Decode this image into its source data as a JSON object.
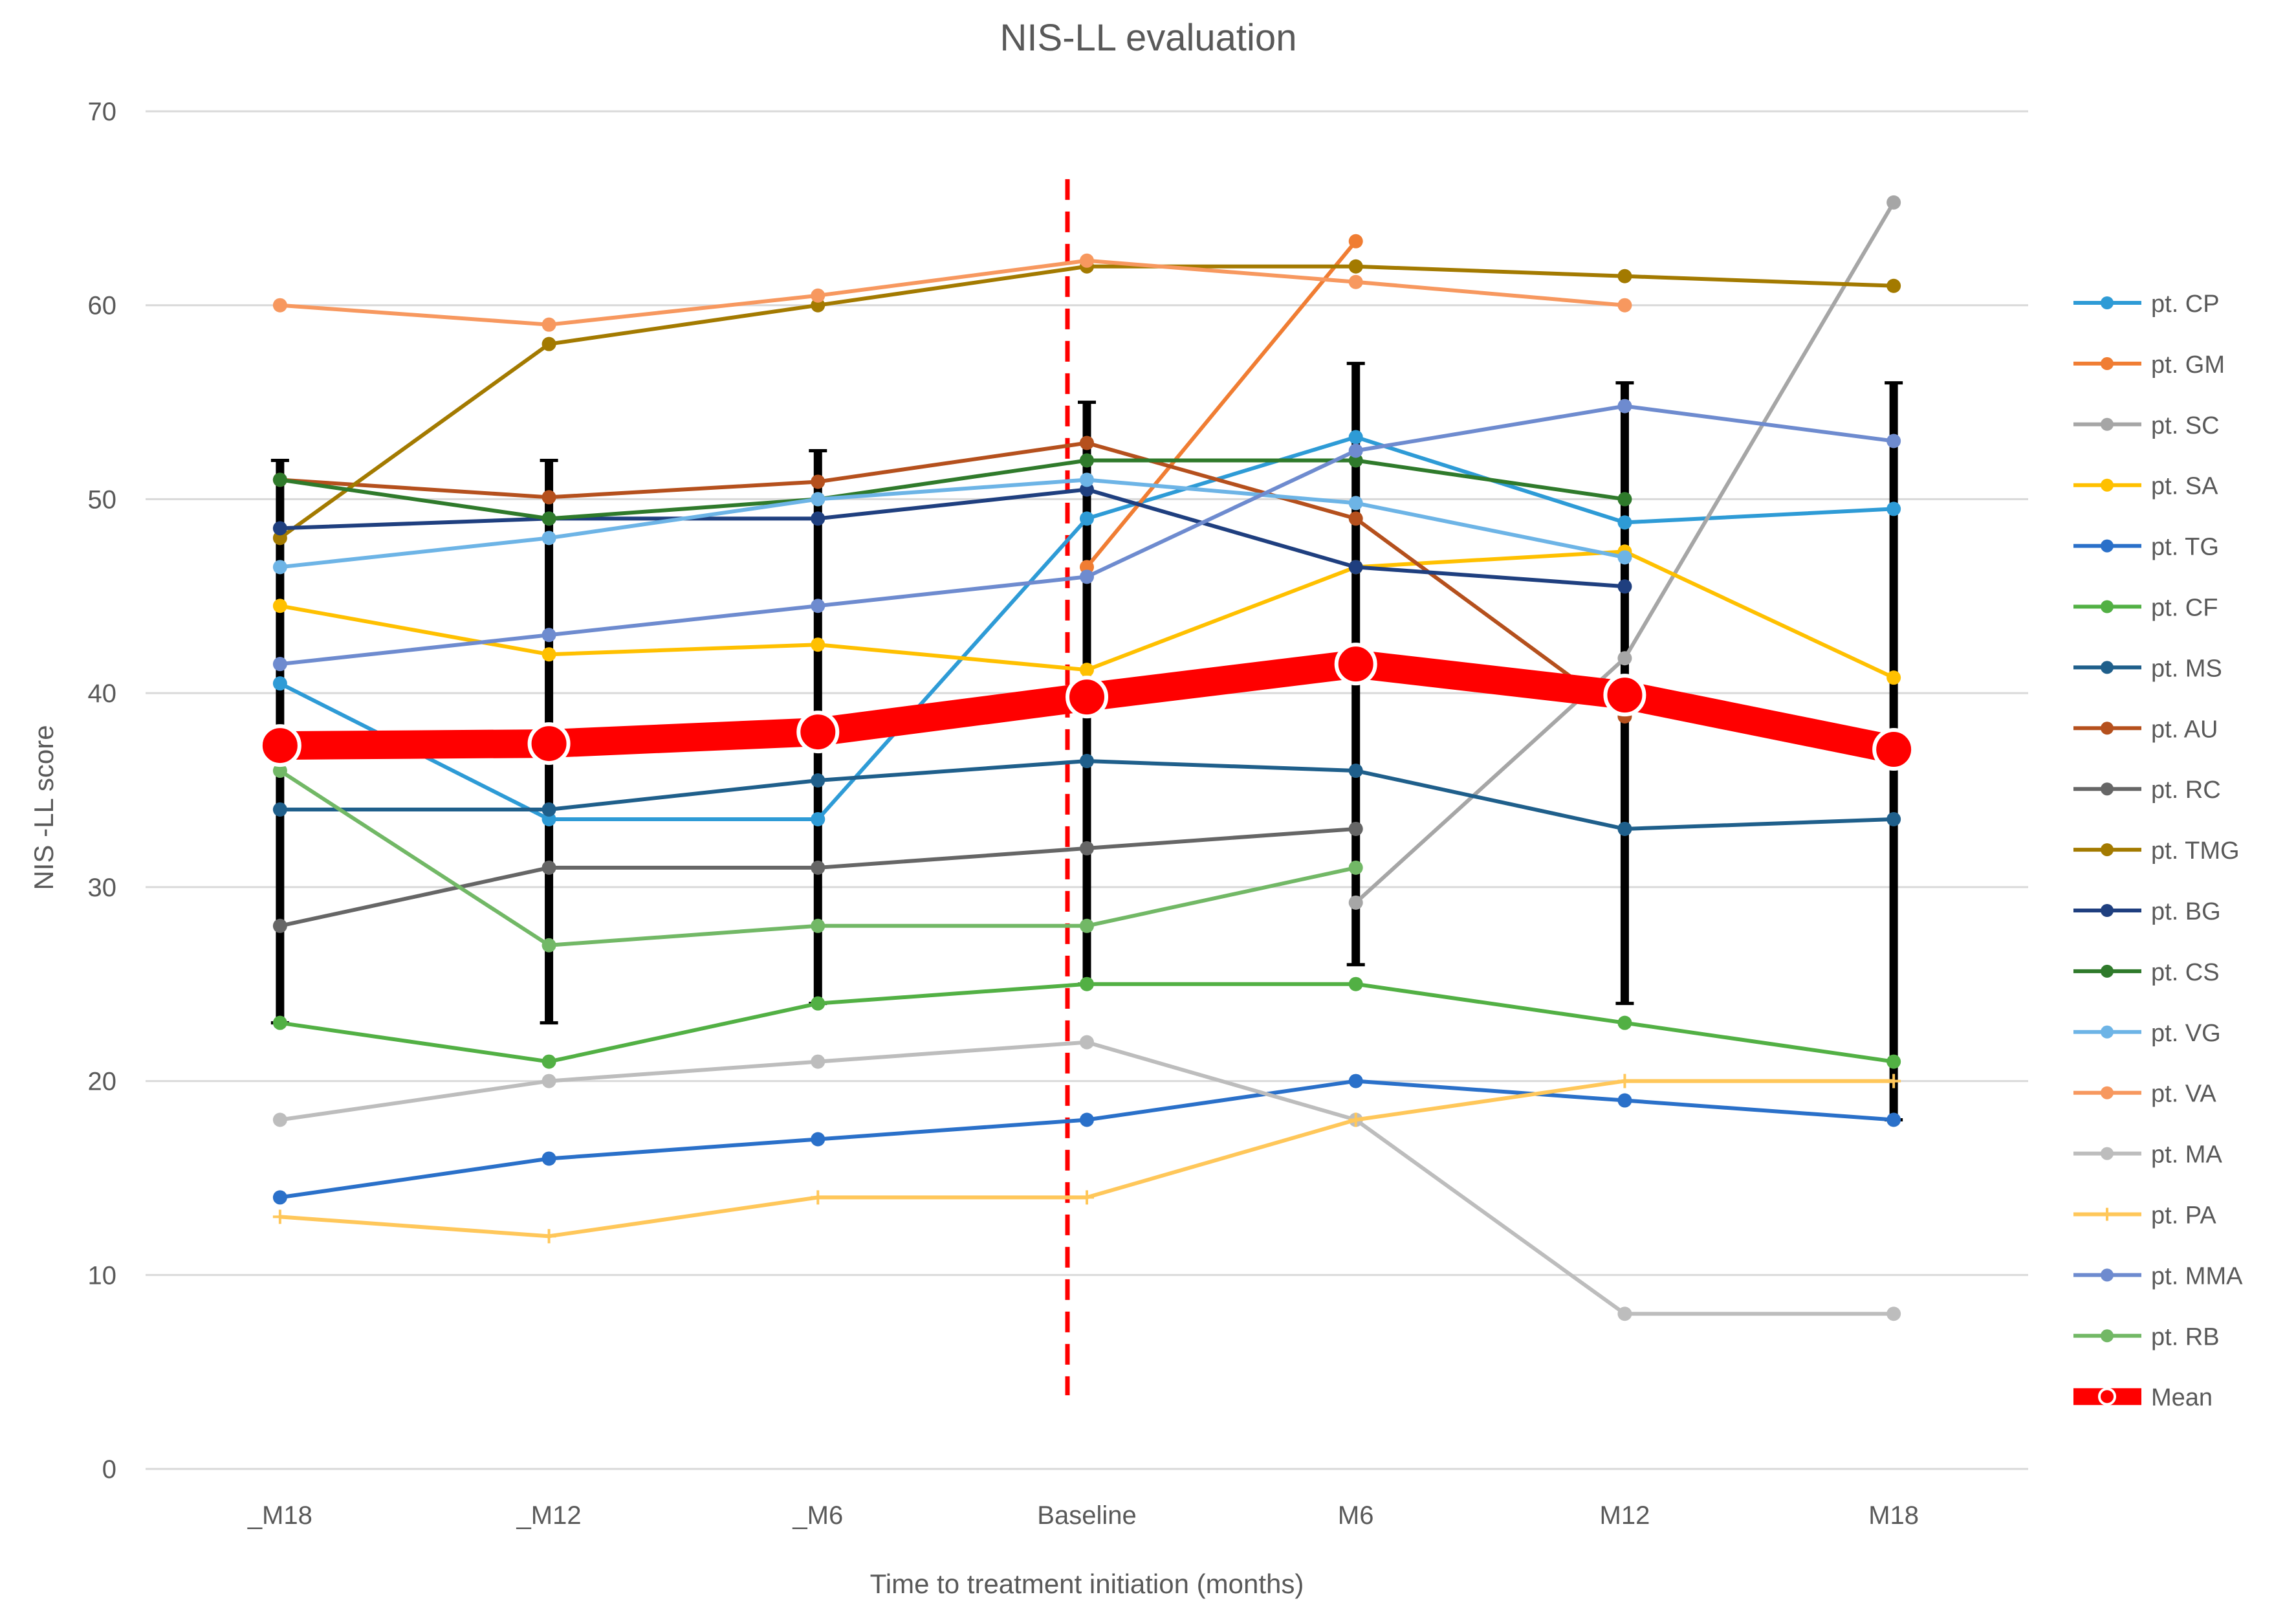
{
  "chart_data": {
    "type": "line",
    "title": "NIS-LL evaluation",
    "xlabel": "Time to treatment initiation (months)",
    "ylabel": "NIS -LL score",
    "ylim": [
      0,
      70
    ],
    "yticks": [
      0,
      10,
      20,
      30,
      40,
      50,
      60,
      70
    ],
    "grid": true,
    "legend": "right",
    "categories": [
      "_M18",
      "_M12",
      "_M6",
      "Baseline",
      "M6",
      "M12",
      "M18"
    ],
    "treatment_initiation_marker": "Baseline",
    "series": [
      {
        "name": "pt. CP",
        "color": "#2E9BD6",
        "marker": "dot",
        "values": [
          40.5,
          33.5,
          33.5,
          49,
          53.2,
          48.8,
          49.5
        ]
      },
      {
        "name": "pt. GM",
        "color": "#F07D33",
        "marker": "dot",
        "values": [
          null,
          null,
          null,
          46.5,
          63.3,
          null,
          null
        ]
      },
      {
        "name": "pt. SC",
        "color": "#A6A6A6",
        "marker": "dot",
        "values": [
          null,
          null,
          null,
          null,
          29.2,
          41.8,
          65.3
        ]
      },
      {
        "name": "pt. SA",
        "color": "#FFC000",
        "marker": "dot",
        "values": [
          44.5,
          42,
          42.5,
          41.2,
          46.5,
          47.3,
          40.8
        ]
      },
      {
        "name": "pt. TG",
        "color": "#2A70C9",
        "marker": "dot",
        "values": [
          14,
          16,
          17,
          18,
          20,
          19,
          18
        ]
      },
      {
        "name": "pt. CF",
        "color": "#52B044",
        "marker": "dot",
        "values": [
          23,
          21,
          24,
          25,
          25,
          23,
          21
        ]
      },
      {
        "name": "pt. MS",
        "color": "#1F5F8B",
        "marker": "dot",
        "values": [
          34,
          34,
          35.5,
          36.5,
          36,
          33,
          33.5
        ]
      },
      {
        "name": "pt. AU",
        "color": "#B5501D",
        "marker": "dot",
        "values": [
          51,
          50.1,
          50.9,
          52.9,
          49,
          38.8,
          null
        ]
      },
      {
        "name": "pt. RC",
        "color": "#666666",
        "marker": "dot",
        "values": [
          28,
          31,
          31,
          32,
          33,
          null,
          null
        ]
      },
      {
        "name": "pt. TMG",
        "color": "#A37A00",
        "marker": "dot",
        "values": [
          48,
          58,
          60,
          62,
          62,
          61.5,
          61
        ]
      },
      {
        "name": "pt. BG",
        "color": "#1F3F7F",
        "marker": "dot",
        "values": [
          48.5,
          49,
          49,
          50.5,
          46.5,
          45.5,
          null
        ]
      },
      {
        "name": "pt. CS",
        "color": "#2F7A2B",
        "marker": "dot",
        "values": [
          51,
          49,
          50,
          52,
          52,
          50,
          null
        ]
      },
      {
        "name": "pt. VG",
        "color": "#6DB4E6",
        "marker": "dot",
        "values": [
          46.5,
          48,
          50,
          51,
          49.8,
          47,
          null
        ]
      },
      {
        "name": "pt. VA",
        "color": "#F7985F",
        "marker": "dot",
        "values": [
          60,
          59,
          60.5,
          62.3,
          61.2,
          60,
          null
        ]
      },
      {
        "name": "pt. MA",
        "color": "#BDBDBD",
        "marker": "dot",
        "values": [
          18,
          20,
          21,
          22,
          18,
          8,
          8
        ]
      },
      {
        "name": "pt. PA",
        "color": "#FFC75A",
        "marker": "plus",
        "values": [
          13,
          12,
          14,
          14,
          18,
          20,
          20
        ]
      },
      {
        "name": "pt. MMA",
        "color": "#6E8BCF",
        "marker": "dot",
        "values": [
          41.5,
          43,
          44.5,
          46,
          52.5,
          54.8,
          53
        ]
      },
      {
        "name": "pt. RB",
        "color": "#72B866",
        "marker": "dot",
        "values": [
          36,
          27,
          28,
          28,
          31,
          null,
          null
        ]
      },
      {
        "name": "Mean",
        "color": "#FF0000",
        "marker": "big-dot",
        "emphasis": true,
        "values": [
          37.3,
          37.4,
          38,
          39.8,
          41.5,
          39.9,
          37.1
        ]
      }
    ],
    "error_bars": {
      "series": "Mean",
      "color": "#000000",
      "lower": [
        23,
        23,
        24,
        25,
        26,
        24,
        18
      ],
      "upper": [
        52,
        52,
        52.5,
        55,
        57,
        56,
        56
      ]
    }
  }
}
